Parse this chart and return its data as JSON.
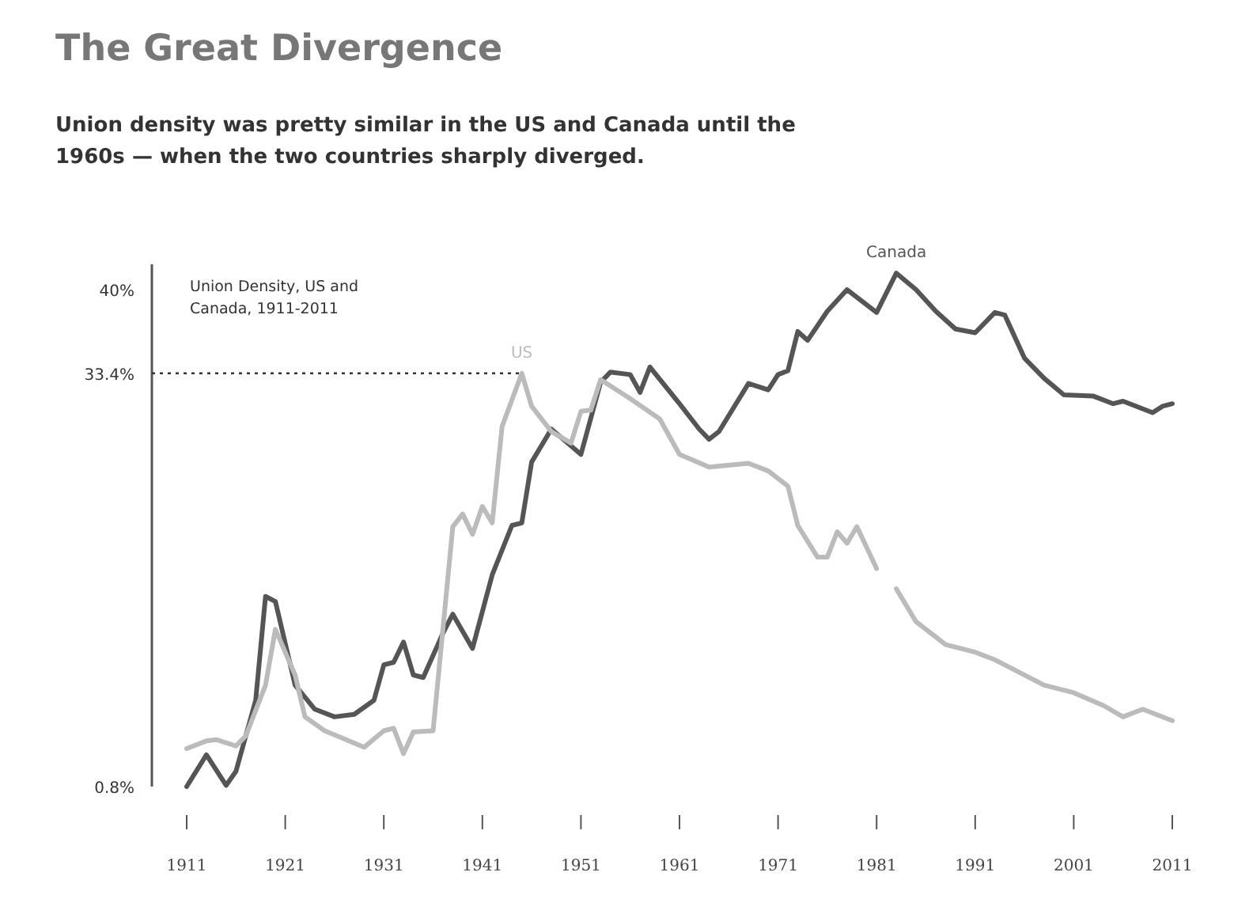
{
  "chart_data": {
    "type": "line",
    "title": "The Great Divergence",
    "subtitle": "Union density was pretty similar in the US and Canada until the 1960s — when the two countries sharply diverged.",
    "annotations": [
      "Union Density, US and Canada, 1911-2011"
    ],
    "ylim": [
      0.8,
      42
    ],
    "yticks": [
      {
        "value": 0.8,
        "label": "0.8%"
      },
      {
        "value": 33.4,
        "label": "33.4%"
      },
      {
        "value": 40,
        "label": "40%"
      }
    ],
    "xlim": [
      1911,
      2011
    ],
    "xticks": [
      1911,
      1921,
      1931,
      1941,
      1951,
      1961,
      1971,
      1981,
      1991,
      2001,
      2011
    ],
    "ref_lines": [
      {
        "axis": "y",
        "value": 33.4,
        "line_style": "dotted",
        "color": "#333333"
      }
    ],
    "marker": "none",
    "line_style": "solid",
    "series": [
      {
        "name": "Canada",
        "color": "#555555",
        "x": [
          1911,
          1913,
          1915,
          1916,
          1918,
          1919,
          1920,
          1922,
          1924,
          1926,
          1928,
          1930,
          1931,
          1932,
          1933,
          1934,
          1935,
          1937,
          1938,
          1940,
          1942,
          1944,
          1945,
          1946,
          1948,
          1951,
          1953,
          1954,
          1956,
          1957,
          1958,
          1961,
          1963,
          1964,
          1965,
          1968,
          1970,
          1971,
          1972,
          1973,
          1974,
          1976,
          1978,
          1981,
          1983,
          1985,
          1987,
          1989,
          1991,
          1993,
          1994,
          1996,
          1998,
          2000,
          2003,
          2005,
          2006,
          2009,
          2010,
          2011
        ],
        "values": [
          0.8,
          3.3,
          0.9,
          2,
          7.6,
          15.8,
          15.4,
          8.8,
          6.9,
          6.3,
          6.5,
          7.6,
          10.4,
          10.6,
          12.2,
          9.6,
          9.4,
          12.9,
          14.4,
          11.7,
          17.5,
          21.4,
          21.6,
          26.4,
          29,
          27,
          32.7,
          33.5,
          33.3,
          31.9,
          33.9,
          31,
          29,
          28.2,
          28.8,
          32.6,
          32.1,
          33.3,
          33.6,
          36.7,
          36,
          38.3,
          40,
          38.2,
          41.3,
          40,
          38.3,
          36.9,
          36.6,
          38.2,
          38,
          34.6,
          33,
          31.7,
          31.6,
          31,
          31.2,
          30.3,
          30.8,
          31
        ]
      },
      {
        "name": "US",
        "color": "#bbbbbb",
        "x": [
          1911,
          1913,
          1914,
          1916,
          1917,
          1919,
          1920,
          1922,
          1923,
          1925,
          1929,
          1931,
          1932,
          1933,
          1934,
          1936,
          1938,
          1939,
          1940,
          1941,
          1942,
          1943,
          1945,
          1946,
          1948,
          1950,
          1951,
          1952,
          1953,
          1956,
          1959,
          1961,
          1964,
          1968,
          1970,
          1972,
          1973,
          1975,
          1976,
          1977,
          1978,
          1979,
          1981,
          1982,
          1983,
          1985,
          1988,
          1991,
          1993,
          1998,
          2001,
          2004,
          2006,
          2008,
          2011
        ],
        "values": [
          3.8,
          4.4,
          4.5,
          4,
          4.8,
          8.8,
          13.2,
          9.6,
          6.3,
          5.2,
          3.9,
          5.2,
          5.4,
          3.4,
          5.1,
          5.2,
          21.3,
          22.3,
          20.7,
          22.9,
          21.6,
          29.2,
          33.4,
          30.8,
          28.8,
          27.9,
          30.4,
          30.5,
          32.9,
          31.4,
          29.8,
          27,
          26,
          26.3,
          25.7,
          24.5,
          21.4,
          18.9,
          18.9,
          20.9,
          20,
          21.3,
          18,
          null,
          16.4,
          13.8,
          12,
          11.4,
          10.8,
          8.8,
          8.2,
          7.2,
          6.3,
          6.9,
          6
        ]
      }
    ]
  }
}
